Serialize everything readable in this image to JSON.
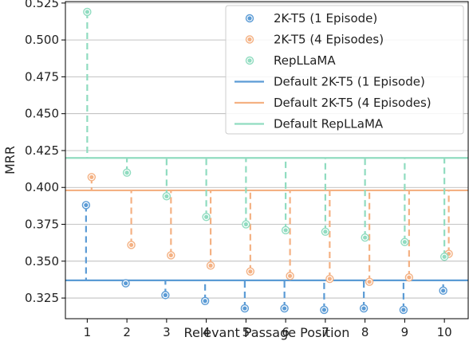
{
  "chart_data": {
    "type": "scatter",
    "xlabel": "Relevant Passage Position",
    "ylabel": "MRR",
    "x": [
      1,
      2,
      3,
      4,
      5,
      6,
      7,
      8,
      9,
      10
    ],
    "xlim": [
      0.45,
      10.6
    ],
    "ylim": [
      0.311,
      0.526
    ],
    "yticks": [
      0.325,
      0.35,
      0.375,
      0.4,
      0.425,
      0.45,
      0.475,
      0.5,
      0.525
    ],
    "ytick_labels": [
      "0.325",
      "0.350",
      "0.375",
      "0.400",
      "0.425",
      "0.450",
      "0.475",
      "0.500",
      "0.525"
    ],
    "grid": "horizontal",
    "legend_position": "top-right",
    "x_offsets": [
      -0.03,
      0.11,
      0.0
    ],
    "series": [
      {
        "name": "2K-T5 (1 Episode)",
        "color": "#5b9bd5",
        "values": [
          0.388,
          0.335,
          0.327,
          0.323,
          0.318,
          0.318,
          0.317,
          0.318,
          0.317,
          0.33
        ],
        "default": 0.337,
        "default_name": "Default 2K-T5 (1 Episode)"
      },
      {
        "name": "2K-T5 (4 Episodes)",
        "color": "#f4b183",
        "values": [
          0.407,
          0.361,
          0.354,
          0.347,
          0.343,
          0.34,
          0.338,
          0.336,
          0.339,
          0.355
        ],
        "default": 0.398,
        "default_name": "Default  2K-T5 (4 Episodes)"
      },
      {
        "name": "RepLLaMA",
        "color": "#90dcc0",
        "values": [
          0.519,
          0.41,
          0.394,
          0.38,
          0.375,
          0.371,
          0.37,
          0.366,
          0.363,
          0.353
        ],
        "default": 0.42,
        "default_name": "Default RepLLaMA"
      }
    ]
  }
}
